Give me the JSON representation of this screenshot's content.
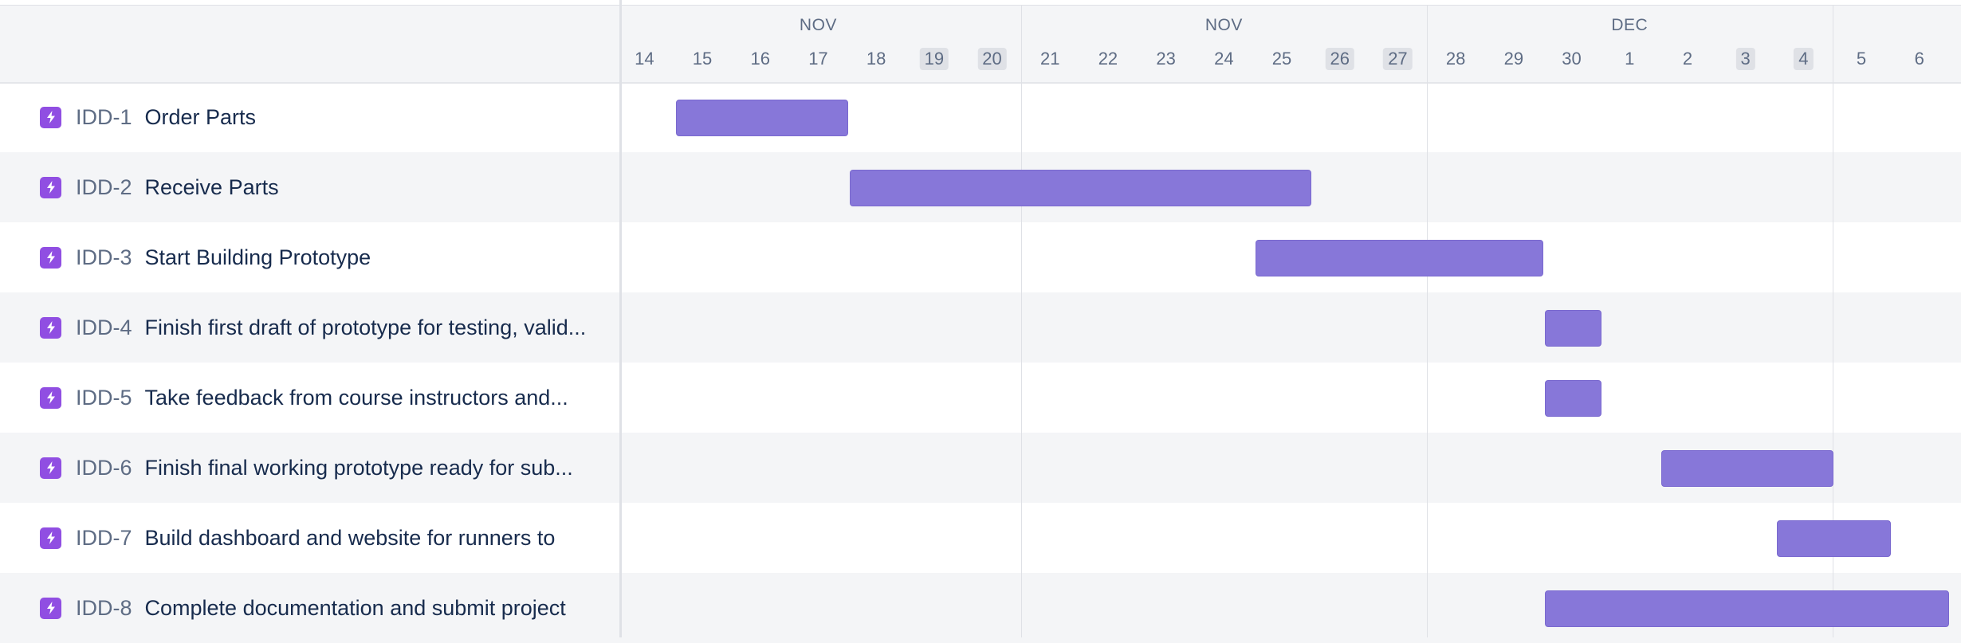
{
  "timeline": {
    "months": [
      {
        "label": "NOV",
        "center_day": 17
      },
      {
        "label": "NOV",
        "center_day": 24
      },
      {
        "label": "DEC",
        "center_day": 31
      }
    ],
    "days": [
      {
        "label": "14",
        "weekend": false
      },
      {
        "label": "15",
        "weekend": false
      },
      {
        "label": "16",
        "weekend": false
      },
      {
        "label": "17",
        "weekend": false
      },
      {
        "label": "18",
        "weekend": false
      },
      {
        "label": "19",
        "weekend": true
      },
      {
        "label": "20",
        "weekend": true
      },
      {
        "label": "21",
        "weekend": false
      },
      {
        "label": "22",
        "weekend": false
      },
      {
        "label": "23",
        "weekend": false
      },
      {
        "label": "24",
        "weekend": false
      },
      {
        "label": "25",
        "weekend": false
      },
      {
        "label": "26",
        "weekend": true
      },
      {
        "label": "27",
        "weekend": true
      },
      {
        "label": "28",
        "weekend": false
      },
      {
        "label": "29",
        "weekend": false
      },
      {
        "label": "30",
        "weekend": false
      },
      {
        "label": "1",
        "weekend": false
      },
      {
        "label": "2",
        "weekend": false
      },
      {
        "label": "3",
        "weekend": true
      },
      {
        "label": "4",
        "weekend": true
      },
      {
        "label": "5",
        "weekend": false
      },
      {
        "label": "6",
        "weekend": false
      }
    ],
    "week_boundaries_after_day_index": [
      6,
      13,
      20
    ]
  },
  "tasks": [
    {
      "key": "IDD-1",
      "title": "Order Parts",
      "start": "Nov 15",
      "end": "Nov 17"
    },
    {
      "key": "IDD-2",
      "title": "Receive Parts",
      "start": "Nov 18",
      "end": "Nov 25"
    },
    {
      "key": "IDD-3",
      "title": "Start Building Prototype",
      "start": "Nov 25",
      "end": "Nov 29"
    },
    {
      "key": "IDD-4",
      "title": "Finish first draft of prototype for testing, valid...",
      "start": "Nov 30",
      "end": "Nov 30"
    },
    {
      "key": "IDD-5",
      "title": "Take feedback from course instructors and...",
      "start": "Nov 30",
      "end": "Nov 30"
    },
    {
      "key": "IDD-6",
      "title": "Finish final working prototype ready for sub...",
      "start": "Dec 1",
      "end": "Dec 3"
    },
    {
      "key": "IDD-7",
      "title": "Build dashboard and website for runners to",
      "start": "Dec 3",
      "end": "Dec 4"
    },
    {
      "key": "IDD-8",
      "title": "Complete documentation and submit project",
      "start": "Nov 30",
      "end": "Dec 5"
    }
  ],
  "task_icon": "story-lightning-icon",
  "colors": {
    "bar": "#8777d9",
    "icon_bg": "#904ee2",
    "key_text": "#5e6c84",
    "title_text": "#172b4d",
    "alt_row": "#f4f5f7",
    "weekend_chip": "#dfe1e6"
  }
}
